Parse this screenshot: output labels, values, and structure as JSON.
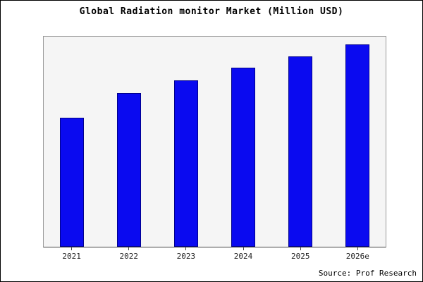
{
  "title": "Global Radiation monitor Market (Million USD)",
  "source": "Source: Prof Research",
  "chart_data": {
    "type": "bar",
    "title": "Global Radiation monitor Market (Million USD)",
    "categories": [
      "2021",
      "2022",
      "2023",
      "2024",
      "2025",
      "2026e"
    ],
    "values": [
      640,
      762,
      823,
      886,
      944,
      1000
    ],
    "xlabel": "",
    "ylabel": "",
    "ylim": [
      0,
      1040
    ],
    "y_axis_labels_visible": false,
    "grid": false,
    "legend": "none",
    "bar_color": "#0a0af0",
    "bar_edge_color": "#00008b",
    "plot_background": "#f5f5f5",
    "figure_background": "#ffffff",
    "annotation": "Source: Prof Research"
  }
}
